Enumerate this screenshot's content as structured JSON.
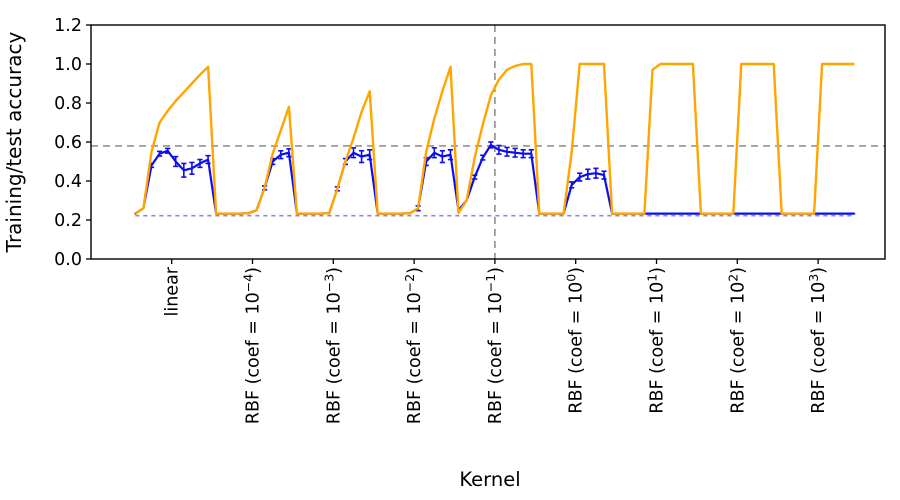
{
  "chart_data": {
    "type": "line",
    "title": "",
    "xlabel": "Kernel",
    "ylabel": "Training/test accuracy",
    "ylim": [
      0.0,
      1.2
    ],
    "yticks": [
      0.0,
      0.2,
      0.4,
      0.6,
      0.8,
      1.0,
      1.2
    ],
    "grid": false,
    "legend": "none",
    "background": "#ffffff",
    "axis_color": "#000000",
    "points_per_category": 10,
    "categories": [
      {
        "text": "linear",
        "prefix": "linear",
        "exp": "",
        "suffix": ""
      },
      {
        "text": "RBF (coef = 10⁻⁴)",
        "prefix": "RBF (coef = 10",
        "exp": "−4",
        "suffix": ")"
      },
      {
        "text": "RBF (coef = 10⁻³)",
        "prefix": "RBF (coef = 10",
        "exp": "−3",
        "suffix": ")"
      },
      {
        "text": "RBF (coef = 10⁻²)",
        "prefix": "RBF (coef = 10",
        "exp": "−2",
        "suffix": ")"
      },
      {
        "text": "RBF (coef = 10⁻¹)",
        "prefix": "RBF (coef = 10",
        "exp": "−1",
        "suffix": ")"
      },
      {
        "text": "RBF (coef = 10⁰)",
        "prefix": "RBF (coef = 10",
        "exp": "0",
        "suffix": ")"
      },
      {
        "text": "RBF (coef = 10¹)",
        "prefix": "RBF (coef = 10",
        "exp": "1",
        "suffix": ")"
      },
      {
        "text": "RBF (coef = 10²)",
        "prefix": "RBF (coef = 10",
        "exp": "2",
        "suffix": ")"
      },
      {
        "text": "RBF (coef = 10³)",
        "prefix": "RBF (coef = 10",
        "exp": "3",
        "suffix": ")"
      }
    ],
    "reference_lines": {
      "horizontal_dashed_y": 0.58,
      "horizontal_dashed_color": "#7f7f7f",
      "vertical_dashed_category_index": 4,
      "vertical_dashed_color": "#7f7f7f",
      "baseline_dashed_y": 0.222,
      "baseline_dashed_color": "#8a85cf"
    },
    "series": [
      {
        "name": "training accuracy",
        "color": "#ffa500",
        "values": [
          [
            0.233,
            0.26,
            0.55,
            0.7,
            0.76,
            0.81,
            0.855,
            0.9,
            0.945,
            0.985
          ],
          [
            0.233,
            0.233,
            0.233,
            0.233,
            0.235,
            0.25,
            0.365,
            0.54,
            0.66,
            0.78
          ],
          [
            0.233,
            0.233,
            0.233,
            0.233,
            0.235,
            0.36,
            0.5,
            0.62,
            0.755,
            0.86
          ],
          [
            0.233,
            0.233,
            0.233,
            0.233,
            0.235,
            0.26,
            0.55,
            0.72,
            0.86,
            0.985
          ],
          [
            0.236,
            0.3,
            0.52,
            0.69,
            0.84,
            0.92,
            0.97,
            0.99,
            1.0,
            1.0
          ],
          [
            0.233,
            0.233,
            0.233,
            0.233,
            0.55,
            1.0,
            1.0,
            1.0,
            1.0,
            0.233
          ],
          [
            0.233,
            0.233,
            0.233,
            0.233,
            0.97,
            1.0,
            1.0,
            1.0,
            1.0,
            1.0
          ],
          [
            0.233,
            0.233,
            0.233,
            0.233,
            0.233,
            1.0,
            1.0,
            1.0,
            1.0,
            1.0
          ],
          [
            0.233,
            0.233,
            0.233,
            0.233,
            0.233,
            1.0,
            1.0,
            1.0,
            1.0,
            1.0
          ]
        ]
      },
      {
        "name": "test accuracy",
        "color": "#0d0df0",
        "values": [
          [
            0.233,
            0.26,
            0.48,
            0.54,
            0.555,
            0.5,
            0.455,
            0.465,
            0.49,
            0.51
          ],
          [
            0.233,
            0.233,
            0.233,
            0.233,
            0.235,
            0.25,
            0.365,
            0.5,
            0.535,
            0.545
          ],
          [
            0.233,
            0.233,
            0.233,
            0.233,
            0.235,
            0.36,
            0.5,
            0.545,
            0.525,
            0.535
          ],
          [
            0.233,
            0.233,
            0.233,
            0.233,
            0.235,
            0.26,
            0.5,
            0.545,
            0.525,
            0.535
          ],
          [
            0.25,
            0.3,
            0.42,
            0.52,
            0.585,
            0.56,
            0.55,
            0.545,
            0.54,
            0.54
          ],
          [
            0.233,
            0.233,
            0.233,
            0.233,
            0.38,
            0.42,
            0.435,
            0.44,
            0.43,
            0.233
          ],
          [
            0.233,
            0.233,
            0.233,
            0.233,
            0.233,
            0.233,
            0.233,
            0.233,
            0.233,
            0.233
          ],
          [
            0.233,
            0.233,
            0.233,
            0.233,
            0.233,
            0.233,
            0.233,
            0.233,
            0.233,
            0.233
          ],
          [
            0.233,
            0.233,
            0.233,
            0.233,
            0.233,
            0.233,
            0.233,
            0.233,
            0.233,
            0.233
          ]
        ],
        "errors": [
          [
            0.005,
            0.005,
            0.01,
            0.012,
            0.012,
            0.025,
            0.035,
            0.03,
            0.02,
            0.02
          ],
          [
            0.004,
            0.004,
            0.004,
            0.004,
            0.004,
            0.006,
            0.01,
            0.015,
            0.02,
            0.02
          ],
          [
            0.004,
            0.004,
            0.004,
            0.004,
            0.004,
            0.01,
            0.015,
            0.025,
            0.03,
            0.025
          ],
          [
            0.004,
            0.004,
            0.004,
            0.004,
            0.004,
            0.012,
            0.02,
            0.025,
            0.03,
            0.025
          ],
          [
            0.004,
            0.005,
            0.01,
            0.012,
            0.015,
            0.022,
            0.022,
            0.022,
            0.02,
            0.02
          ],
          [
            0.004,
            0.004,
            0.004,
            0.004,
            0.015,
            0.02,
            0.025,
            0.025,
            0.02,
            0.004
          ],
          [
            0.003,
            0.003,
            0.003,
            0.003,
            0.003,
            0.003,
            0.003,
            0.003,
            0.003,
            0.003
          ],
          [
            0.003,
            0.003,
            0.003,
            0.003,
            0.003,
            0.003,
            0.003,
            0.003,
            0.003,
            0.003
          ],
          [
            0.003,
            0.003,
            0.003,
            0.003,
            0.003,
            0.003,
            0.003,
            0.003,
            0.003,
            0.003
          ]
        ]
      }
    ]
  }
}
